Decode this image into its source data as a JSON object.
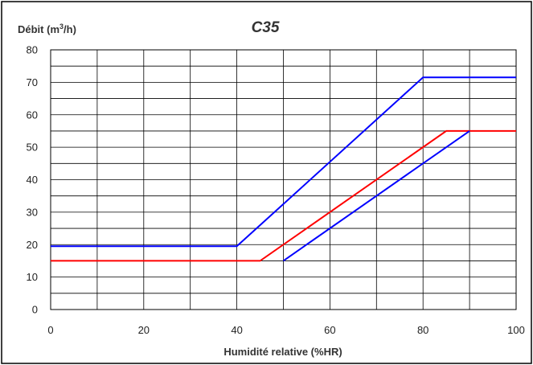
{
  "chart_data": {
    "type": "line",
    "title": "C35",
    "ylabel_main": "Débit (m",
    "ylabel_sup": "3",
    "ylabel_end": "/h)",
    "xlabel": "Humidité relative (%HR)",
    "xlim": [
      0,
      100
    ],
    "ylim": [
      0,
      80
    ],
    "x_major_ticks": [
      0,
      20,
      40,
      60,
      80,
      100
    ],
    "y_major_ticks": [
      0,
      10,
      20,
      30,
      40,
      50,
      60,
      70,
      80
    ],
    "x_gridlines": [
      0,
      10,
      20,
      30,
      40,
      50,
      60,
      70,
      80,
      90,
      100
    ],
    "y_gridlines": [
      0,
      5,
      10,
      15,
      20,
      25,
      30,
      35,
      40,
      45,
      50,
      55,
      60,
      65,
      70,
      75,
      80
    ],
    "grid": true,
    "legend": "none",
    "series": [
      {
        "color": "#0000ff",
        "points": [
          [
            0,
            19.5
          ],
          [
            40,
            19.5
          ],
          [
            80,
            71.5
          ],
          [
            100,
            71.5
          ]
        ]
      },
      {
        "color": "#ff0000",
        "points": [
          [
            0,
            15
          ],
          [
            45,
            15
          ],
          [
            85,
            55
          ],
          [
            100,
            55
          ]
        ]
      },
      {
        "color": "#0000ff",
        "points": [
          [
            50,
            15
          ],
          [
            90,
            55
          ]
        ]
      }
    ]
  }
}
